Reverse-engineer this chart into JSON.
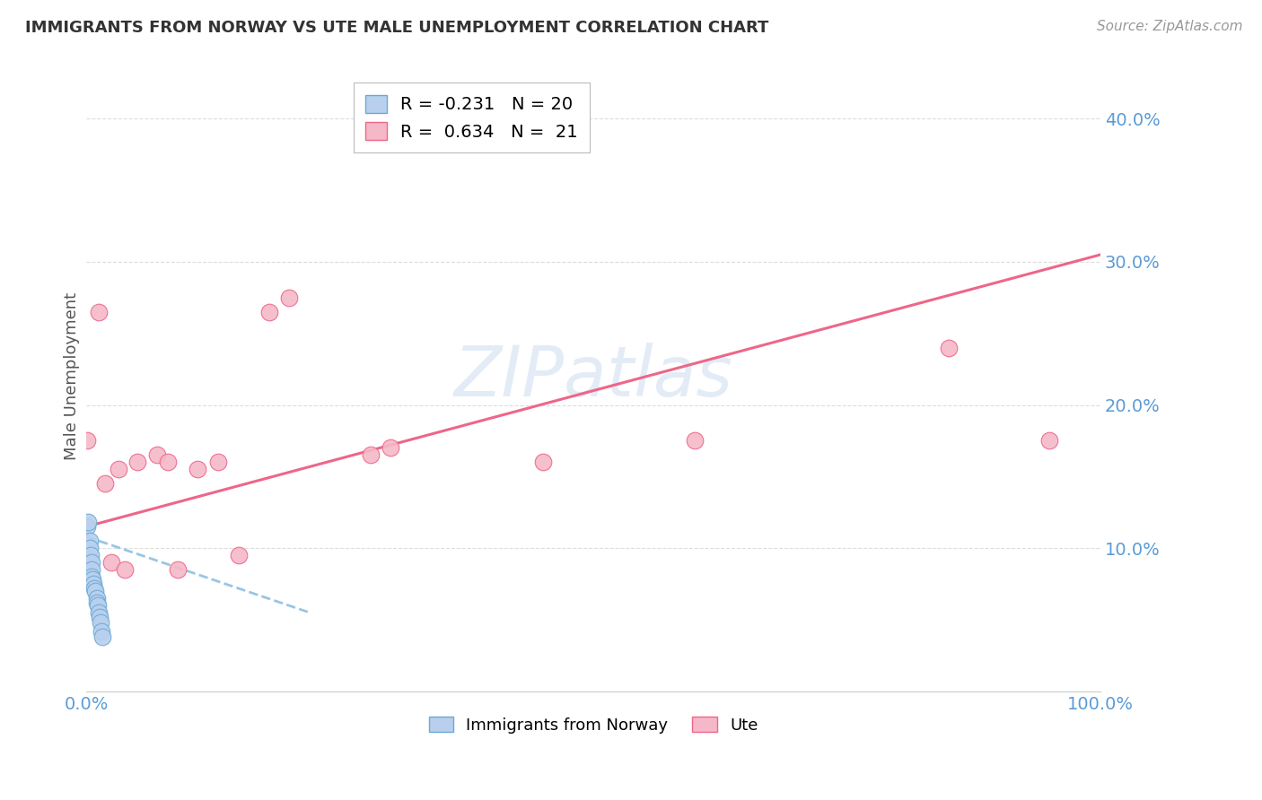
{
  "title": "IMMIGRANTS FROM NORWAY VS UTE MALE UNEMPLOYMENT CORRELATION CHART",
  "source": "Source: ZipAtlas.com",
  "ylabel_label": "Male Unemployment",
  "legend_label1": "Immigrants from Norway",
  "legend_label2": "Ute",
  "norway_R": "-0.231",
  "norway_N": "20",
  "ute_R": "0.634",
  "ute_N": "21",
  "xlim": [
    0.0,
    1.0
  ],
  "ylim": [
    0.0,
    0.44
  ],
  "yticks": [
    0.0,
    0.1,
    0.2,
    0.3,
    0.4
  ],
  "ytick_labels": [
    "",
    "10.0%",
    "20.0%",
    "30.0%",
    "40.0%"
  ],
  "norway_scatter_x": [
    0.001,
    0.002,
    0.003,
    0.003,
    0.004,
    0.005,
    0.005,
    0.005,
    0.006,
    0.007,
    0.008,
    0.009,
    0.01,
    0.01,
    0.011,
    0.012,
    0.013,
    0.014,
    0.015,
    0.016
  ],
  "norway_scatter_y": [
    0.115,
    0.118,
    0.105,
    0.1,
    0.095,
    0.09,
    0.085,
    0.08,
    0.078,
    0.075,
    0.072,
    0.07,
    0.065,
    0.062,
    0.06,
    0.055,
    0.052,
    0.048,
    0.042,
    0.038
  ],
  "ute_scatter_x": [
    0.001,
    0.012,
    0.018,
    0.025,
    0.032,
    0.038,
    0.05,
    0.07,
    0.08,
    0.09,
    0.11,
    0.13,
    0.15,
    0.18,
    0.2,
    0.28,
    0.3,
    0.45,
    0.6,
    0.85,
    0.95
  ],
  "ute_scatter_y": [
    0.175,
    0.265,
    0.145,
    0.09,
    0.155,
    0.085,
    0.16,
    0.165,
    0.16,
    0.085,
    0.155,
    0.16,
    0.095,
    0.265,
    0.275,
    0.165,
    0.17,
    0.16,
    0.175,
    0.24,
    0.175
  ],
  "norway_trendline_x": [
    0.0,
    0.22
  ],
  "norway_trendline_y": [
    0.108,
    0.055
  ],
  "ute_trendline_x": [
    0.0,
    1.0
  ],
  "ute_trendline_y": [
    0.115,
    0.305
  ],
  "dot_size": 180,
  "norway_color": "#b8d0ee",
  "ute_color": "#f5b8c8",
  "norway_edge_color": "#6aaad4",
  "ute_edge_color": "#ee6688",
  "norway_trend_color": "#88bbdd",
  "ute_trend_color": "#ee6688",
  "watermark": "ZIPatlas",
  "background_color": "#ffffff",
  "grid_color": "#dddddd",
  "axis_color": "#5b9bd5",
  "title_color": "#333333",
  "ylabel_color": "#555555",
  "source_color": "#999999"
}
